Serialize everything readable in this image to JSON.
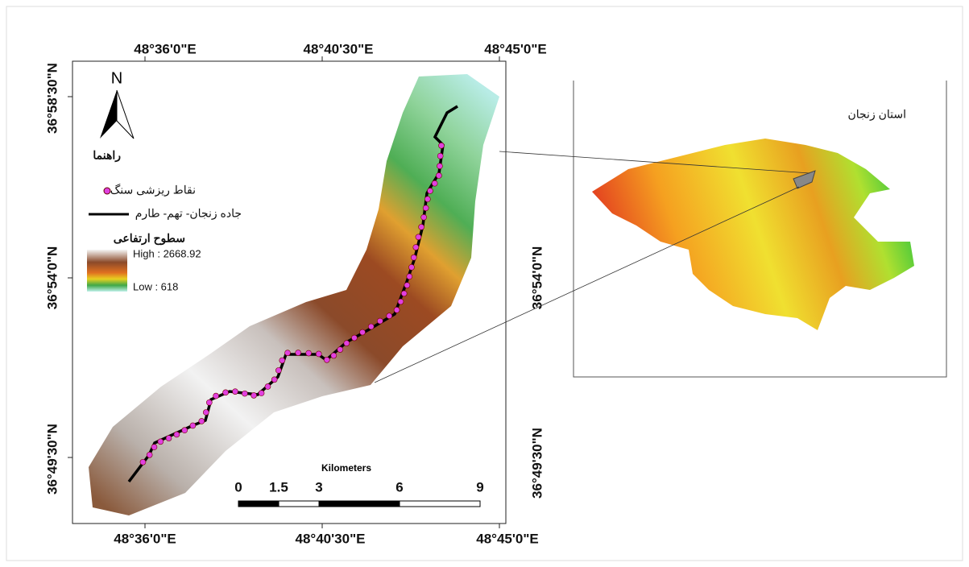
{
  "map": {
    "top_labels": [
      "48°36'0\"E",
      "48°40'30\"E",
      "48°45'0\"E"
    ],
    "bottom_labels": [
      "48°36'0\"E",
      "48°40'30\"E",
      "48°45'0\"E"
    ],
    "left_labels": [
      "36°58'30\"N",
      "36°54'0\"N",
      "36°49'30\"N"
    ],
    "right_labels": [
      "36°54'0\"N",
      "36°49'30\"N"
    ],
    "north": "N",
    "legend": {
      "title": "راهنما",
      "points": "نقاط ریزشی سنگ",
      "road": "جاده زنجان- تهم- طارم",
      "elevation": "سطوح ارتفاعی",
      "high": "High : 2668.92",
      "low": "Low : 618"
    },
    "scale": {
      "unit": "Kilometers",
      "labels": [
        "0",
        "1.5",
        "3",
        "6",
        "9"
      ]
    },
    "inset_title": "استان زنجان"
  }
}
